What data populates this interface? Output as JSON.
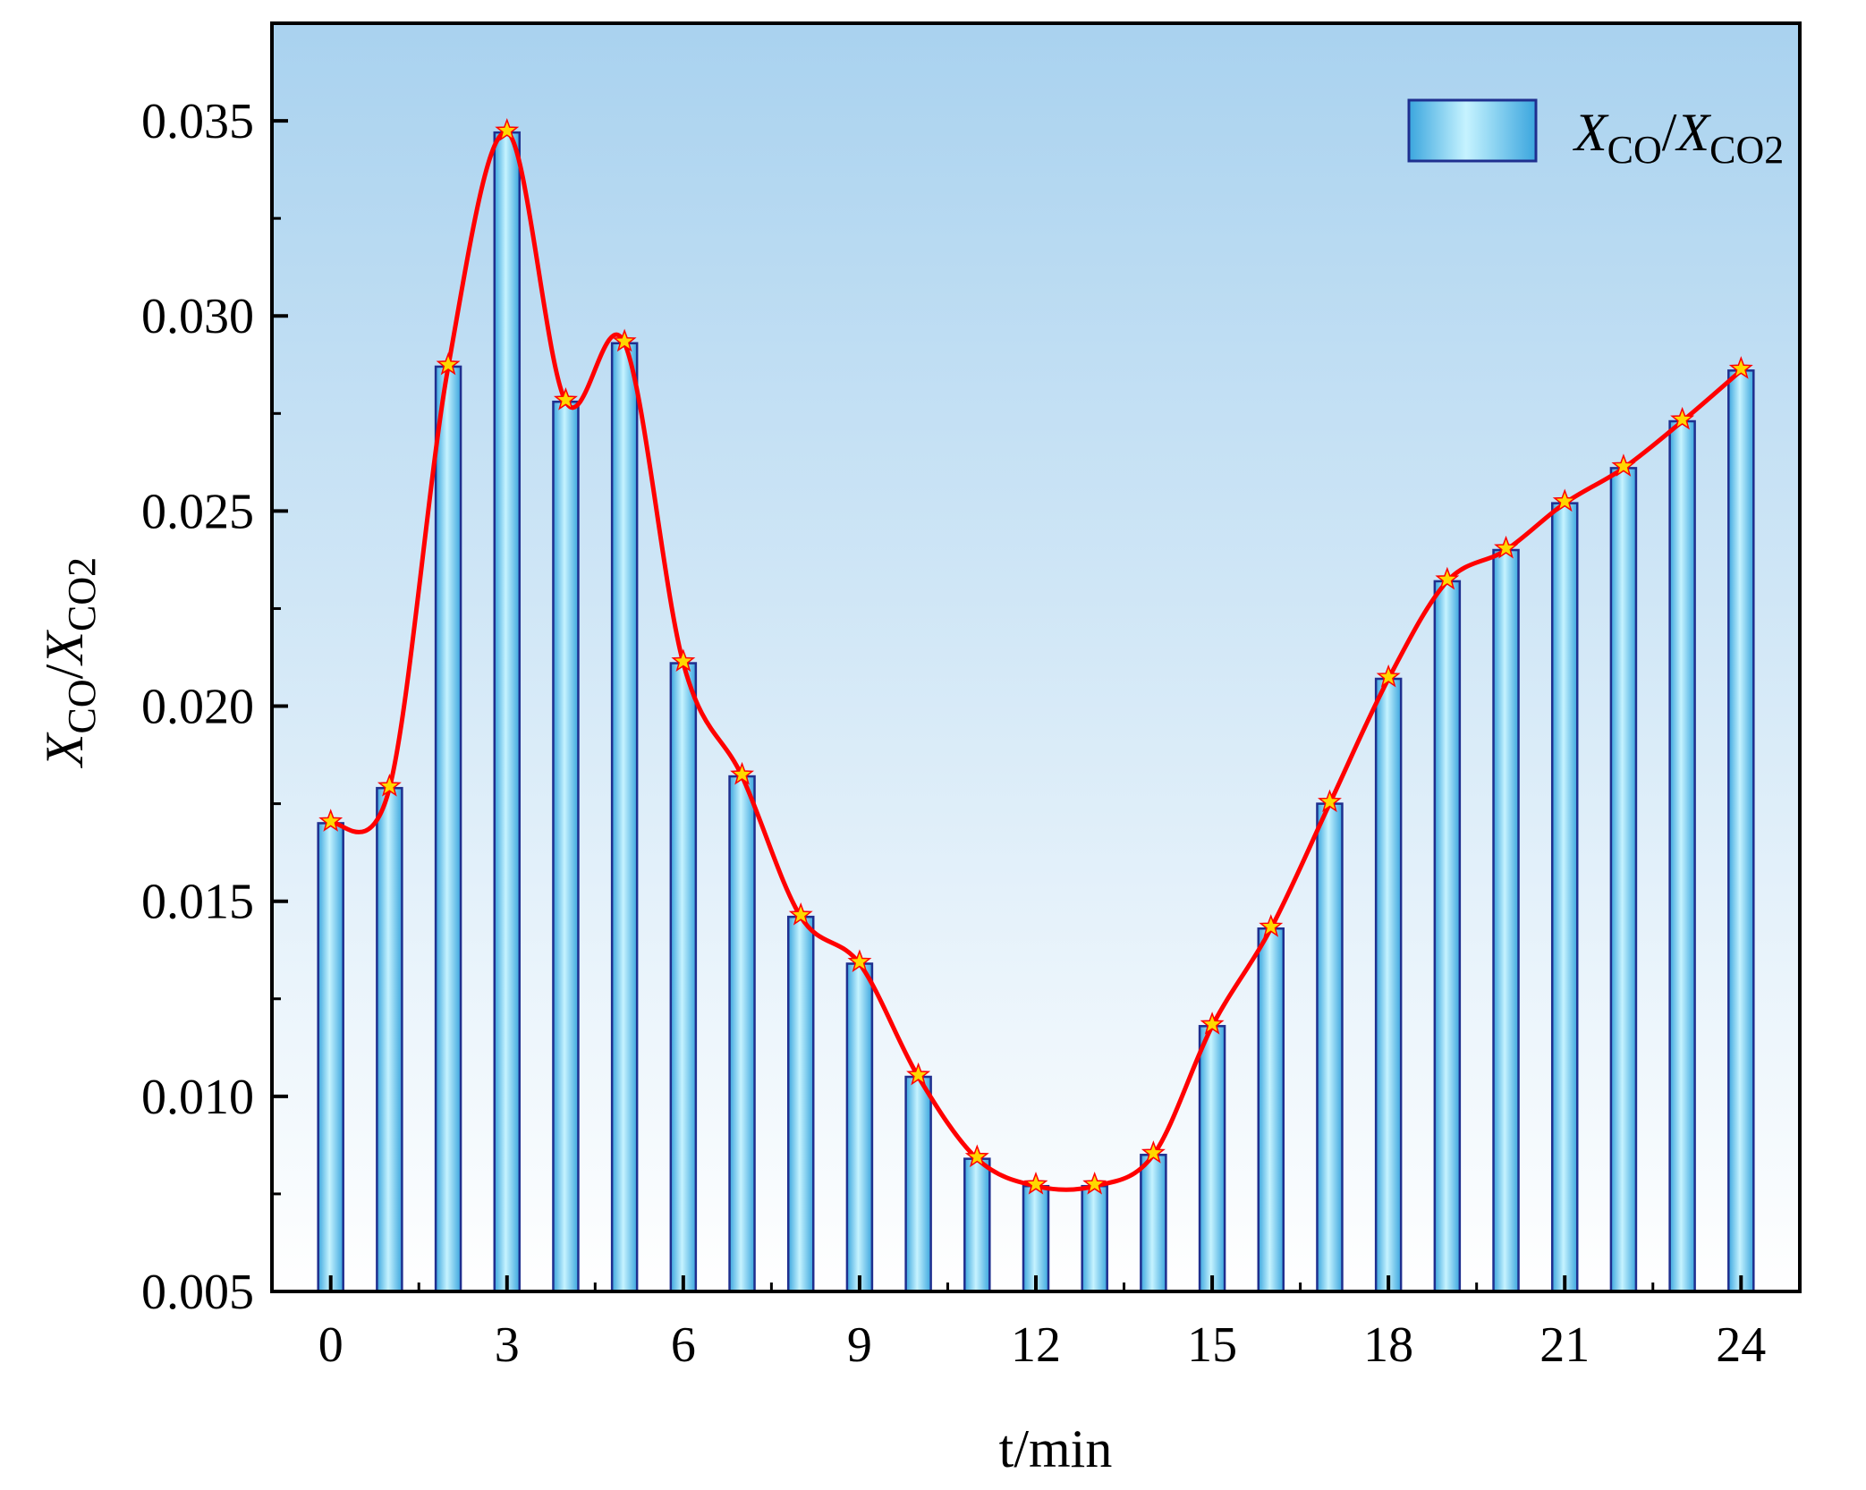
{
  "chart_data": {
    "type": "bar",
    "x": [
      0,
      1,
      2,
      3,
      4,
      5,
      6,
      7,
      8,
      9,
      10,
      11,
      12,
      13,
      14,
      15,
      16,
      17,
      18,
      19,
      20,
      21,
      22,
      23,
      24
    ],
    "values": [
      0.017,
      0.0179,
      0.0287,
      0.0347,
      0.0278,
      0.0293,
      0.0211,
      0.0182,
      0.0146,
      0.0134,
      0.0105,
      0.0084,
      0.0077,
      0.0077,
      0.0085,
      0.0118,
      0.0143,
      0.0175,
      0.0207,
      0.0232,
      0.024,
      0.0252,
      0.0261,
      0.0273,
      0.0286
    ],
    "smooth_line": true,
    "markers": "star",
    "xlabel": "t/min",
    "ylabel": {
      "main_a": "X",
      "sub_a": "CO",
      "slash": "/",
      "main_b": "X",
      "sub_b": "CO2"
    },
    "legend": {
      "main_a": "X",
      "sub_a": "CO",
      "slash": "/",
      "main_b": "X",
      "sub_b": "CO2"
    },
    "legend_position": "top-right",
    "xlim": [
      -1,
      25
    ],
    "ylim": [
      0.005,
      0.0375
    ],
    "xticks": [
      0,
      3,
      6,
      9,
      12,
      15,
      18,
      21,
      24
    ],
    "yticks": [
      0.005,
      0.01,
      0.015,
      0.02,
      0.025,
      0.03,
      0.035
    ],
    "ytick_labels": [
      "0.005",
      "0.010",
      "0.015",
      "0.020",
      "0.025",
      "0.030",
      "0.035"
    ],
    "grid": false
  },
  "colors": {
    "bg_top": "#a9d2ef",
    "bg_bottom": "#ffffff",
    "bar_edge": "#1f2f8f",
    "bar_light": "#c6f3ff",
    "bar_dark": "#3ba6de",
    "line": "#ff0000",
    "star_fill": "#ffd800",
    "star_edge": "#ff0000"
  }
}
